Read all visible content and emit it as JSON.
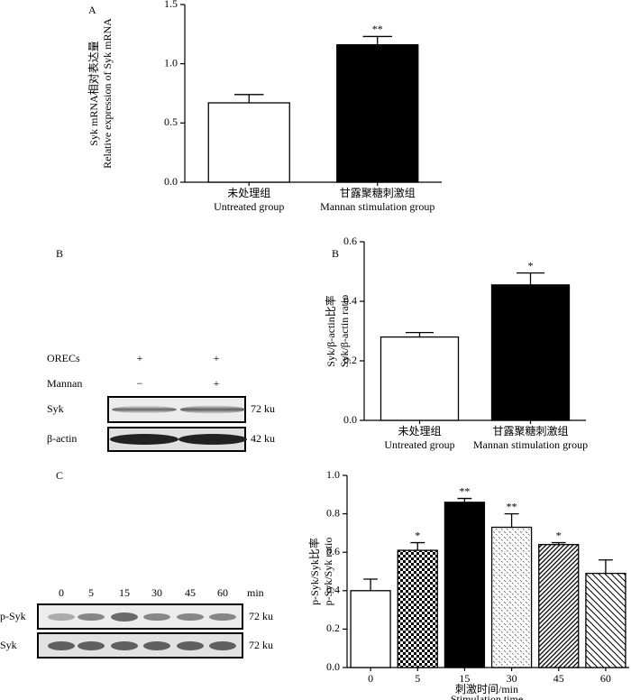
{
  "chart_data": [
    {
      "type": "bar",
      "panel": "A",
      "ylabel": [
        "Syk mRNA相对表达量",
        "Relative expression of Syk mRNA"
      ],
      "categories": [
        [
          "未处理组",
          "Untreated group"
        ],
        [
          "甘露聚糖刺激组",
          "Mannan stimulation group"
        ]
      ],
      "values": [
        0.67,
        1.16
      ],
      "errors": [
        0.07,
        0.07
      ],
      "annotations": [
        null,
        "**"
      ],
      "patterns": [
        "none",
        "solid"
      ],
      "ylim": [
        0,
        1.5
      ],
      "yticks": [
        {
          "value": 0,
          "label": "0.0"
        },
        {
          "value": 0.5,
          "label": "0.5"
        },
        {
          "value": 1,
          "label": "1.0"
        },
        {
          "value": 1.5,
          "label": "1.5"
        }
      ]
    },
    {
      "type": "bar",
      "panel": "B",
      "ylabel": [
        "Syk/β-actin比率",
        "Syk/β-actin ratio"
      ],
      "categories": [
        [
          "未处理组",
          "Untreated group"
        ],
        [
          "甘露聚糖刺激组",
          "Mannan stimulation group"
        ]
      ],
      "values": [
        0.28,
        0.455
      ],
      "errors": [
        0.015,
        0.04
      ],
      "annotations": [
        null,
        "*"
      ],
      "patterns": [
        "none",
        "solid"
      ],
      "ylim": [
        0,
        0.6
      ],
      "yticks": [
        {
          "value": 0,
          "label": "0.0"
        },
        {
          "value": 0.2,
          "label": "0.2"
        },
        {
          "value": 0.4,
          "label": "0.4"
        },
        {
          "value": 0.6,
          "label": "0.6"
        }
      ]
    },
    {
      "type": "bar",
      "panel": "C",
      "ylabel": [
        "p-Syk/Syk比率",
        "p-Syk/Syk ratio"
      ],
      "xlabel": [
        "刺激时间/min",
        "Stimulation time"
      ],
      "categories": [
        [
          "0"
        ],
        [
          "5"
        ],
        [
          "15"
        ],
        [
          "30"
        ],
        [
          "45"
        ],
        [
          "60"
        ]
      ],
      "values": [
        0.4,
        0.61,
        0.86,
        0.73,
        0.64,
        0.49
      ],
      "errors": [
        0.06,
        0.04,
        0.02,
        0.07,
        0.01,
        0.07
      ],
      "annotations": [
        null,
        "*",
        "**",
        "**",
        "*",
        null
      ],
      "patterns": [
        "none",
        "checker",
        "solid",
        "dots",
        "hatch",
        "backhatch"
      ],
      "ylim": [
        0,
        1
      ],
      "yticks": [
        {
          "value": 0,
          "label": "0.0"
        },
        {
          "value": 0.2,
          "label": "0.2"
        },
        {
          "value": 0.4,
          "label": "0.4"
        },
        {
          "value": 0.6,
          "label": "0.6"
        },
        {
          "value": 0.8,
          "label": "0.8"
        },
        {
          "value": 1,
          "label": "1.0"
        }
      ]
    }
  ],
  "blots": {
    "B": {
      "rows": [
        {
          "label": "ORECs",
          "lanes": [
            "+",
            "+"
          ]
        },
        {
          "label": "Mannan",
          "lanes": [
            "−",
            "+"
          ]
        }
      ],
      "bands": [
        {
          "label": "Syk",
          "size": "72 ku"
        },
        {
          "label": "β-actin",
          "size": "42 ku"
        }
      ]
    },
    "C": {
      "lanes": [
        "0",
        "5",
        "15",
        "30",
        "45",
        "60"
      ],
      "unit": "min",
      "bands": [
        {
          "label": "p-Syk",
          "size": "72 ku"
        },
        {
          "label": "Syk",
          "size": "72 ku"
        }
      ]
    }
  }
}
